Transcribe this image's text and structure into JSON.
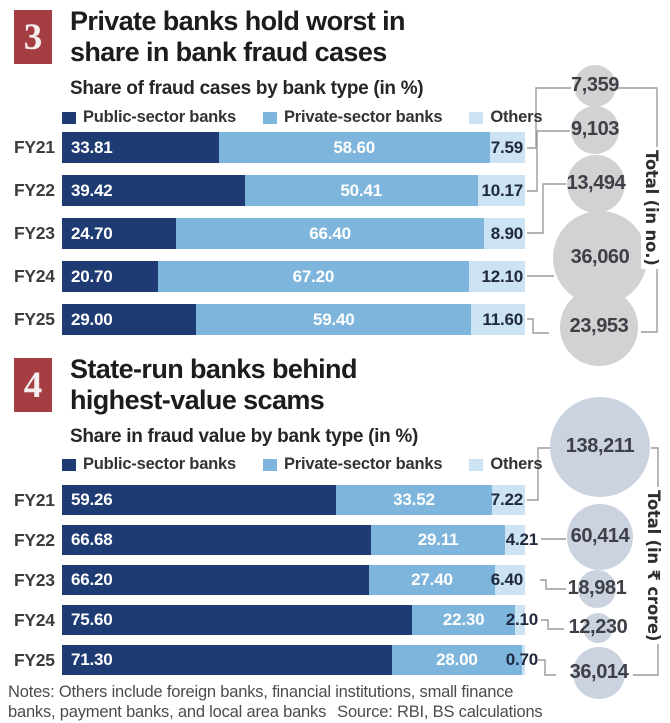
{
  "colors": {
    "badge_red": "#a43e42",
    "public_navy": "#1f3b73",
    "private_blue": "#7db5dd",
    "others_lightblue": "#cbe3f2",
    "circle_gray": "#d2d2d2",
    "circle_blue_gray": "#ccd3e0",
    "connector_gray": "#9b9b9b",
    "title_black": "#1c1c1a",
    "others_value_navy": "#20293f",
    "notes_gray": "#4c4c4c"
  },
  "charts": [
    {
      "number": "3",
      "title_line1": "Private banks hold worst in",
      "title_line2": "share in bank fraud cases",
      "subtitle": "Share of fraud cases by bank type (in %)",
      "legend": [
        "Public-sector banks",
        "Private-sector banks",
        "Others"
      ],
      "total_axis_label": "Total (in no.)",
      "rows": [
        {
          "year": "FY21",
          "public": "33.81",
          "private": "58.60",
          "others": "7.59",
          "total": "7,359"
        },
        {
          "year": "FY22",
          "public": "39.42",
          "private": "50.41",
          "others": "10.17",
          "total": "9,103"
        },
        {
          "year": "FY23",
          "public": "24.70",
          "private": "66.40",
          "others": "8.90",
          "total": "13,494"
        },
        {
          "year": "FY24",
          "public": "20.70",
          "private": "67.20",
          "others": "12.10",
          "total": "36,060"
        },
        {
          "year": "FY25",
          "public": "29.00",
          "private": "59.40",
          "others": "11.60",
          "total": "23,953"
        }
      ]
    },
    {
      "number": "4",
      "title_line1": "State-run banks behind",
      "title_line2": "highest-value scams",
      "subtitle": "Share in fraud value by bank type (in %)",
      "legend": [
        "Public-sector banks",
        "Private-sector banks",
        "Others"
      ],
      "total_axis_label": "Total (in ₹ crore)",
      "rows": [
        {
          "year": "FY21",
          "public": "59.26",
          "private": "33.52",
          "others": "7.22",
          "total": "138,211"
        },
        {
          "year": "FY22",
          "public": "66.68",
          "private": "29.11",
          "others": "4.21",
          "total": "60,414"
        },
        {
          "year": "FY23",
          "public": "66.20",
          "private": "27.40",
          "others": "6.40",
          "total": "18,981"
        },
        {
          "year": "FY24",
          "public": "75.60",
          "private": "22.30",
          "others": "2.10",
          "total": "12,230"
        },
        {
          "year": "FY25",
          "public": "71.30",
          "private": "28.00",
          "others": "0.70",
          "total": "36,014"
        }
      ]
    }
  ],
  "notes": {
    "line1": "Notes: Others include foreign banks, financial institutions, small finance",
    "line2": "banks, payment banks, and local area banks",
    "source": "Source: RBI, BS calculations"
  },
  "chart_data": [
    {
      "type": "bar",
      "subtype": "horizontal-stacked",
      "title": "Private banks hold worst in share in bank fraud cases",
      "subtitle": "Share of fraud cases by bank type (in %)",
      "categories": [
        "FY21",
        "FY22",
        "FY23",
        "FY24",
        "FY25"
      ],
      "series": [
        {
          "name": "Public-sector banks",
          "values": [
            33.81,
            39.42,
            24.7,
            20.7,
            29.0
          ],
          "color": "#1f3b73"
        },
        {
          "name": "Private-sector banks",
          "values": [
            58.6,
            50.41,
            66.4,
            67.2,
            59.4
          ],
          "color": "#7db5dd"
        },
        {
          "name": "Others",
          "values": [
            7.59,
            10.17,
            8.9,
            12.1,
            11.6
          ],
          "color": "#cbe3f2"
        }
      ],
      "totals": {
        "label": "Total (in no.)",
        "values": [
          7359,
          9103,
          13494,
          36060,
          23953
        ],
        "mark": "bubble"
      },
      "xlim": [
        0,
        100
      ],
      "legend_position": "top",
      "grid": false
    },
    {
      "type": "bar",
      "subtype": "horizontal-stacked",
      "title": "State-run banks behind highest-value scams",
      "subtitle": "Share in fraud value by bank type (in %)",
      "categories": [
        "FY21",
        "FY22",
        "FY23",
        "FY24",
        "FY25"
      ],
      "series": [
        {
          "name": "Public-sector banks",
          "values": [
            59.26,
            66.68,
            66.2,
            75.6,
            71.3
          ],
          "color": "#1f3b73"
        },
        {
          "name": "Private-sector banks",
          "values": [
            33.52,
            29.11,
            27.4,
            22.3,
            28.0
          ],
          "color": "#7db5dd"
        },
        {
          "name": "Others",
          "values": [
            7.22,
            4.21,
            6.4,
            2.1,
            0.7
          ],
          "color": "#cbe3f2"
        }
      ],
      "totals": {
        "label": "Total (in ₹ crore)",
        "values": [
          138211,
          60414,
          18981,
          12230,
          36014
        ],
        "mark": "bubble"
      },
      "xlim": [
        0,
        100
      ],
      "legend_position": "top",
      "grid": false
    }
  ]
}
